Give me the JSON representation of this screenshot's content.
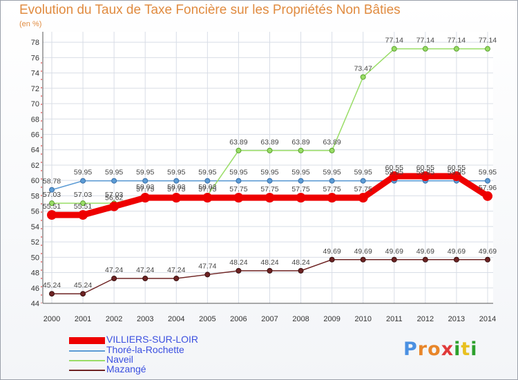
{
  "chart_data": {
    "type": "line",
    "title": "Evolution du Taux de Taxe Foncière sur les Propriétés Non Bâties",
    "ylabel": "(en %)",
    "xlabel": "",
    "ylim": [
      44,
      79
    ],
    "yticks": [
      44,
      46,
      48,
      50,
      52,
      54,
      56,
      58,
      60,
      62,
      64,
      66,
      68,
      70,
      72,
      74,
      76,
      78
    ],
    "x": [
      "2000",
      "2001",
      "2002",
      "2003",
      "2004",
      "2005",
      "2006",
      "2007",
      "2008",
      "2009",
      "2010",
      "2011",
      "2012",
      "2013",
      "2014"
    ],
    "series": [
      {
        "name": "VILLIERS-SUR-LOIR",
        "color": "#ee0000",
        "values": [
          55.51,
          55.51,
          56.62,
          57.75,
          57.75,
          57.75,
          57.75,
          57.75,
          57.75,
          57.75,
          57.75,
          60.55,
          60.55,
          60.55,
          57.96
        ],
        "labels": [
          "55.51",
          "55.51",
          "56.62",
          "57.75",
          "57.75",
          "57.75",
          "57.75",
          "57.75",
          "57.75",
          "57.75",
          "57.75",
          "60.55",
          "60.55",
          "60.55",
          "57.96"
        ]
      },
      {
        "name": "Thoré-la-Rochette",
        "color": "#5b9bd5",
        "values": [
          58.78,
          59.95,
          59.95,
          59.95,
          59.95,
          59.95,
          59.95,
          59.95,
          59.95,
          59.95,
          59.95,
          59.95,
          59.95,
          59.95,
          59.95
        ],
        "labels": [
          "58.78",
          "59.95",
          "59.95",
          "59.95",
          "59.95",
          "59.95",
          "59.95",
          "59.95",
          "59.95",
          "59.95",
          "59.95",
          "59.95",
          "59.95",
          "59.95",
          "59.95"
        ]
      },
      {
        "name": "Naveil",
        "color": "#99dd66",
        "values": [
          57.03,
          57.03,
          57.03,
          58.03,
          58.03,
          58.03,
          63.89,
          63.89,
          63.89,
          63.89,
          73.47,
          77.14,
          77.14,
          77.14,
          77.14
        ],
        "labels": [
          "57.03",
          "57.03",
          "57.03",
          "58.03",
          "58.03",
          "58.03",
          "63.89",
          "63.89",
          "63.89",
          "63.89",
          "73.47",
          "77.14",
          "77.14",
          "77.14",
          "77.14"
        ]
      },
      {
        "name": "Mazangé",
        "color": "#6e2323",
        "values": [
          45.24,
          45.24,
          47.24,
          47.24,
          47.24,
          47.74,
          48.24,
          48.24,
          48.24,
          49.69,
          49.69,
          49.69,
          49.69,
          49.69,
          49.69
        ],
        "labels": [
          "45.24",
          "45.24",
          "47.24",
          "47.24",
          "47.24",
          "47.74",
          "48.24",
          "48.24",
          "48.24",
          "49.69",
          "49.69",
          "49.69",
          "49.69",
          "49.69",
          "49.69"
        ]
      }
    ]
  },
  "logo": {
    "text": "Proxiti",
    "letters": [
      "P",
      "r",
      "o",
      "x",
      "i",
      "t",
      "i"
    ],
    "colors": [
      "#4a90e2",
      "#e8862a",
      "#e8862a",
      "#e03a3a",
      "#2ca02c",
      "#e8c020",
      "#2ca02c"
    ]
  }
}
